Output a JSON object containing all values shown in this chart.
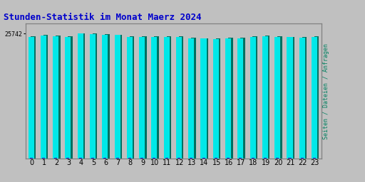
{
  "title": "Stunden-Statistik im Monat Maerz 2024",
  "title_color": "#0000cc",
  "title_fontsize": 9,
  "ylabel_right": "Seiten / Dateien / Anfragen",
  "ylabel_right_color": "#008060",
  "background_color": "#c0c0c0",
  "plot_bg_color": "#c0c0c0",
  "bar_color_cyan": "#00e8e8",
  "bar_color_teal": "#007060",
  "bar_color_blue": "#0000bb",
  "hours": [
    0,
    1,
    2,
    3,
    4,
    5,
    6,
    7,
    8,
    9,
    10,
    11,
    12,
    13,
    14,
    15,
    16,
    17,
    18,
    19,
    20,
    21,
    22,
    23
  ],
  "values_cyan": [
    25050,
    25280,
    25200,
    25100,
    25720,
    25680,
    25500,
    25420,
    25100,
    25020,
    25100,
    25050,
    25050,
    24800,
    24700,
    24600,
    24750,
    24780,
    25100,
    25180,
    25100,
    25000,
    24950,
    25020
  ],
  "values_teal": [
    25200,
    25420,
    25350,
    25220,
    25742,
    25720,
    25600,
    25520,
    25230,
    25150,
    25230,
    25180,
    25180,
    24950,
    24820,
    24700,
    24880,
    24900,
    25230,
    25300,
    25230,
    25120,
    25070,
    25150
  ],
  "values_blue": [
    100,
    100,
    100,
    100,
    100,
    100,
    100,
    100,
    100,
    100,
    100,
    100,
    100,
    100,
    100,
    100,
    100,
    100,
    100,
    100,
    100,
    100,
    100,
    100
  ],
  "ytick_label": "25742",
  "ytick_value": 25742,
  "ymin": 0,
  "ymax": 27800,
  "ytick_fontsize": 6,
  "xtick_fontsize": 7,
  "border_color": "#808080"
}
